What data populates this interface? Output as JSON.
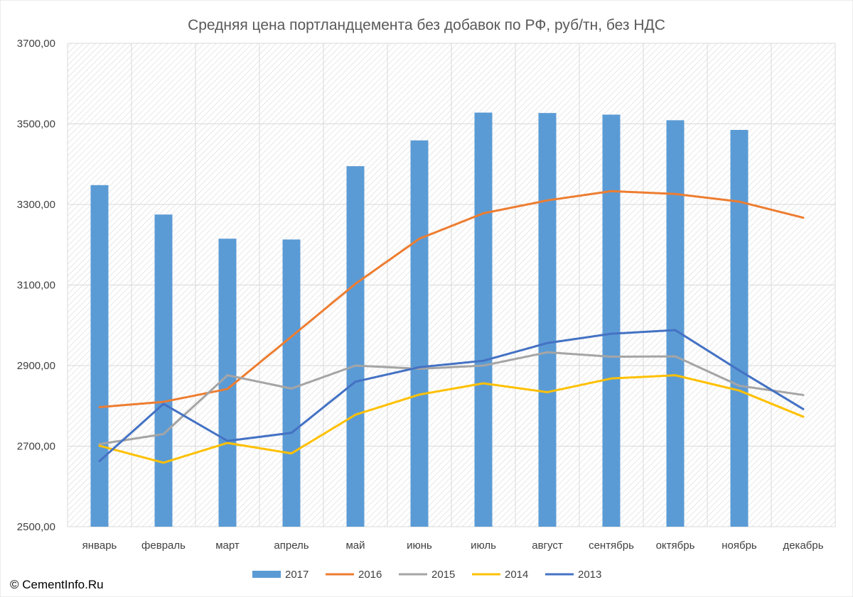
{
  "chart_data": {
    "type": "bar",
    "title": "Средняя цена портландцемента без добавок по РФ, руб/тн, без НДС",
    "xlabel": "",
    "ylabel": "",
    "ylim": [
      2500,
      3700
    ],
    "yticks": [
      "2500,00",
      "2700,00",
      "2900,00",
      "3100,00",
      "3300,00",
      "3500,00",
      "3700,00"
    ],
    "ytick_values": [
      2500,
      2700,
      2900,
      3100,
      3300,
      3500,
      3700
    ],
    "categories": [
      "январь",
      "февраль",
      "март",
      "апрель",
      "май",
      "июнь",
      "июль",
      "август",
      "сентябрь",
      "октябрь",
      "ноябрь",
      "декабрь"
    ],
    "grid": true,
    "legend_position": "bottom",
    "series": [
      {
        "name": "2017",
        "type": "bar",
        "color": "#5b9bd5",
        "values": [
          3348,
          3275,
          3215,
          3213,
          3395,
          3459,
          3528,
          3527,
          3523,
          3509,
          3485,
          null
        ]
      },
      {
        "name": "2016",
        "type": "line",
        "color": "#ed7d31",
        "values": [
          2797,
          2810,
          2842,
          2972,
          3103,
          3215,
          3278,
          3310,
          3333,
          3326,
          3307,
          3267
        ]
      },
      {
        "name": "2015",
        "type": "line",
        "color": "#a5a5a5",
        "values": [
          2705,
          2730,
          2876,
          2843,
          2900,
          2892,
          2900,
          2933,
          2922,
          2923,
          2850,
          2827
        ]
      },
      {
        "name": "2014",
        "type": "line",
        "color": "#ffc000",
        "values": [
          2701,
          2659,
          2708,
          2682,
          2778,
          2828,
          2856,
          2834,
          2868,
          2876,
          2838,
          2773
        ]
      },
      {
        "name": "2013",
        "type": "line",
        "color": "#4472c4",
        "values": [
          2663,
          2805,
          2713,
          2733,
          2860,
          2896,
          2912,
          2956,
          2979,
          2988,
          2888,
          2792
        ]
      }
    ]
  },
  "footer": {
    "copyright": "© CementInfo.Ru"
  }
}
